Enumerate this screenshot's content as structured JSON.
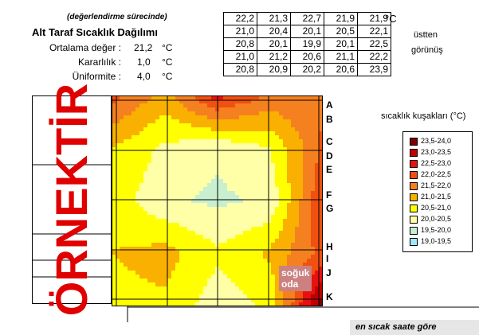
{
  "header": {
    "subtitle": "(değerlendirme sürecinde)",
    "title": "Alt Taraf Sıcaklık Dağılımı",
    "stats": [
      {
        "label": "Ortalama değer :",
        "value": "21,2",
        "unit": "°C"
      },
      {
        "label": "Kararlılık :",
        "value": "1,0",
        "unit": "°C"
      },
      {
        "label": "Üniformite :",
        "value": "4,0",
        "unit": "°C"
      }
    ]
  },
  "table": {
    "unit": "°C",
    "note_line1": "üstten",
    "note_line2": "görünüş",
    "rows": [
      [
        "22,2",
        "21,3",
        "22,7",
        "21,9",
        "21,9"
      ],
      [
        "21,0",
        "20,4",
        "20,1",
        "20,5",
        "22,1"
      ],
      [
        "20,8",
        "20,1",
        "19,9",
        "20,1",
        "22,5"
      ],
      [
        "21,0",
        "21,2",
        "20,6",
        "21,1",
        "22,2"
      ],
      [
        "20,8",
        "20,9",
        "20,2",
        "20,6",
        "23,9"
      ]
    ]
  },
  "watermark": "ÖRNEKTİR",
  "cold_room": {
    "line1": "soğuk",
    "line2": "oda"
  },
  "footer_label": "en sıcak saate göre",
  "colors": {
    "watermark": "#e00000",
    "cold_room_bg": "#cc8080"
  },
  "chart_data": {
    "type": "heatmap",
    "row_labels": [
      "A",
      "B",
      "C",
      "D",
      "E",
      "F",
      "G",
      "H",
      "I",
      "J",
      "K"
    ],
    "legend_title": "sıcaklık kuşakları (°C)",
    "bands": [
      {
        "label": "23,5-24,0",
        "color": "#800000"
      },
      {
        "label": "23,0-23,5",
        "color": "#c00000"
      },
      {
        "label": "22,5-23,0",
        "color": "#e81010"
      },
      {
        "label": "22,0-22,5",
        "color": "#f05010"
      },
      {
        "label": "21,5-22,0",
        "color": "#f58020"
      },
      {
        "label": "21,0-21,5",
        "color": "#f9b000"
      },
      {
        "label": "20,5-21,0",
        "color": "#ffff00"
      },
      {
        "label": "20,0-20,5",
        "color": "#ffffa8"
      },
      {
        "label": "19,5-20,0",
        "color": "#c8f0d0"
      },
      {
        "label": "19,0-19,5",
        "color": "#a0e8ff"
      }
    ],
    "values": [
      [
        22.2,
        21.3,
        22.7,
        21.9,
        21.9
      ],
      [
        21.0,
        20.4,
        20.1,
        20.5,
        22.1
      ],
      [
        20.8,
        20.1,
        19.9,
        20.1,
        22.5
      ],
      [
        21.0,
        21.2,
        20.6,
        21.1,
        22.2
      ],
      [
        20.8,
        20.9,
        20.2,
        20.6,
        23.9
      ]
    ]
  }
}
